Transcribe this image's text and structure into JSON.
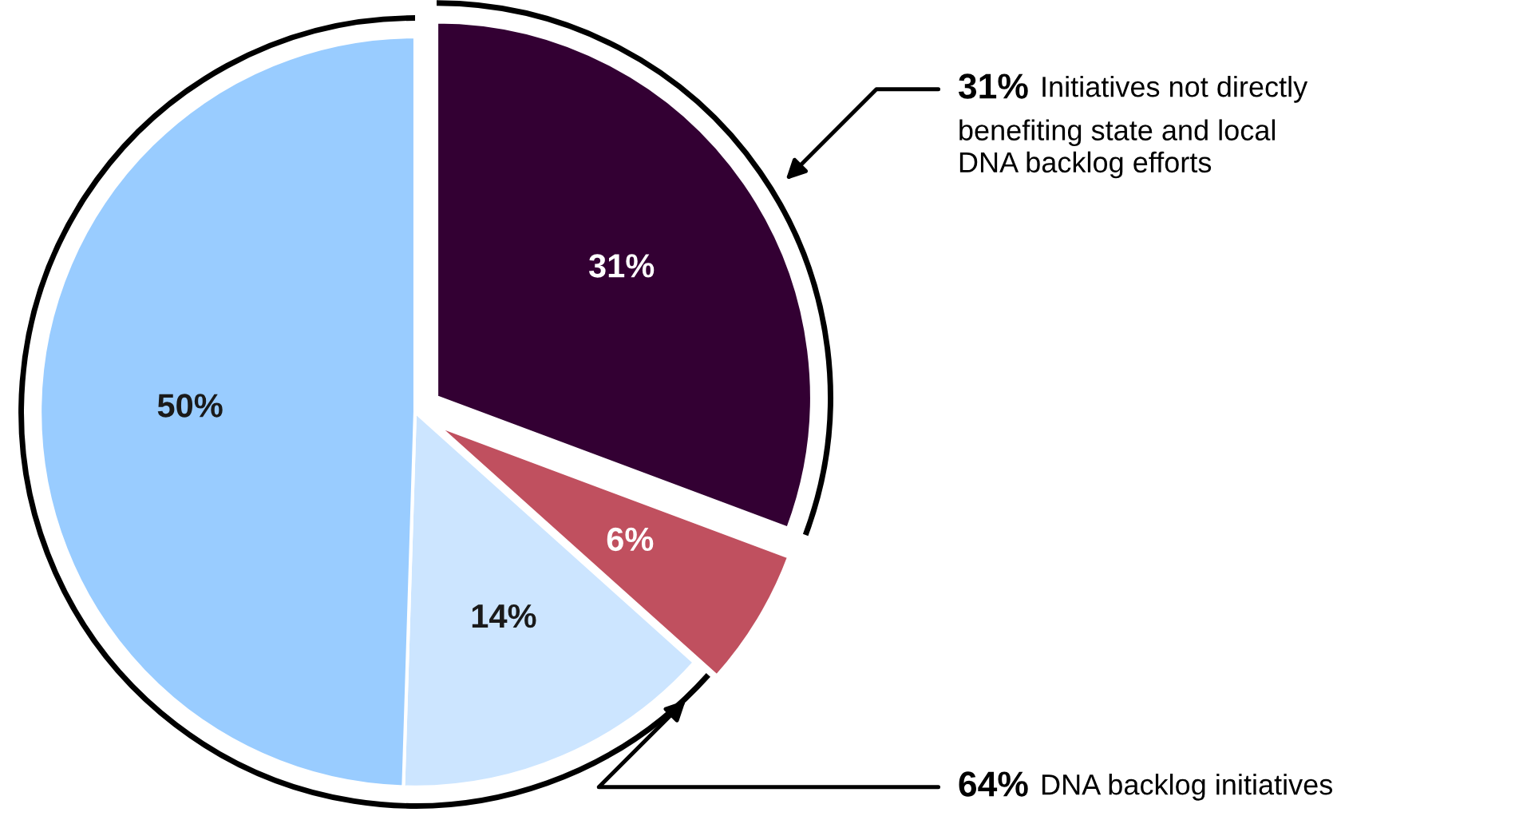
{
  "chart_data": {
    "type": "pie",
    "categories": [
      null,
      null,
      null,
      null
    ],
    "values": [
      31,
      6,
      14,
      50
    ],
    "colors": [
      "#330033",
      "#c0505f",
      "#cce5ff",
      "#99ccff"
    ],
    "value_labels": [
      "31%",
      "6%",
      "14%",
      "50%"
    ],
    "annotations": [
      "31% Initiatives not directly\nbenefiting state and local\nDNA backlog efforts",
      "64% DNA backlog initiatives"
    ]
  }
}
